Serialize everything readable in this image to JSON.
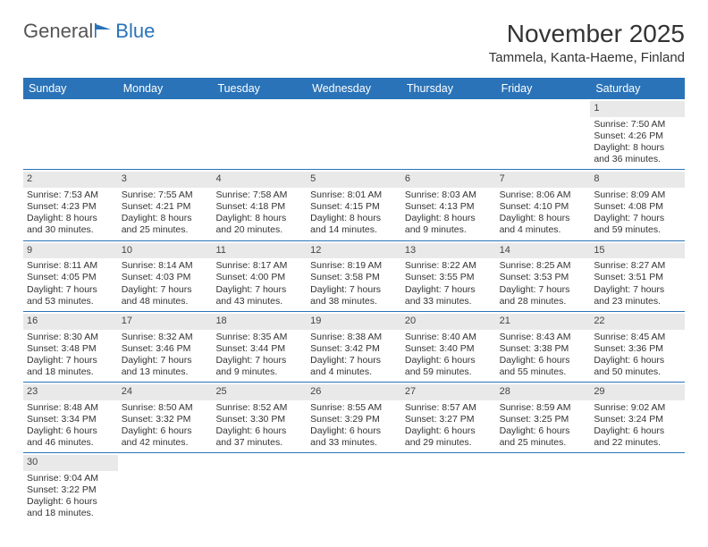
{
  "brand": {
    "part1": "General",
    "part2": "Blue"
  },
  "title": "November 2025",
  "subtitle": "Tammela, Kanta-Haeme, Finland",
  "colors": {
    "header_bg": "#2a73b8",
    "header_text": "#ffffff",
    "daynum_bg": "#e9e9e9",
    "border": "#2a73b8",
    "text": "#333333"
  },
  "fonts": {
    "title_size": 28,
    "subtitle_size": 15,
    "header_size": 12.5,
    "body_size": 10.5,
    "daynum_size": 11
  },
  "day_names": [
    "Sunday",
    "Monday",
    "Tuesday",
    "Wednesday",
    "Thursday",
    "Friday",
    "Saturday"
  ],
  "weeks": [
    [
      {
        "empty": true
      },
      {
        "empty": true
      },
      {
        "empty": true
      },
      {
        "empty": true
      },
      {
        "empty": true
      },
      {
        "empty": true
      },
      {
        "num": "1",
        "sunrise": "Sunrise: 7:50 AM",
        "sunset": "Sunset: 4:26 PM",
        "day1": "Daylight: 8 hours",
        "day2": "and 36 minutes."
      }
    ],
    [
      {
        "num": "2",
        "sunrise": "Sunrise: 7:53 AM",
        "sunset": "Sunset: 4:23 PM",
        "day1": "Daylight: 8 hours",
        "day2": "and 30 minutes."
      },
      {
        "num": "3",
        "sunrise": "Sunrise: 7:55 AM",
        "sunset": "Sunset: 4:21 PM",
        "day1": "Daylight: 8 hours",
        "day2": "and 25 minutes."
      },
      {
        "num": "4",
        "sunrise": "Sunrise: 7:58 AM",
        "sunset": "Sunset: 4:18 PM",
        "day1": "Daylight: 8 hours",
        "day2": "and 20 minutes."
      },
      {
        "num": "5",
        "sunrise": "Sunrise: 8:01 AM",
        "sunset": "Sunset: 4:15 PM",
        "day1": "Daylight: 8 hours",
        "day2": "and 14 minutes."
      },
      {
        "num": "6",
        "sunrise": "Sunrise: 8:03 AM",
        "sunset": "Sunset: 4:13 PM",
        "day1": "Daylight: 8 hours",
        "day2": "and 9 minutes."
      },
      {
        "num": "7",
        "sunrise": "Sunrise: 8:06 AM",
        "sunset": "Sunset: 4:10 PM",
        "day1": "Daylight: 8 hours",
        "day2": "and 4 minutes."
      },
      {
        "num": "8",
        "sunrise": "Sunrise: 8:09 AM",
        "sunset": "Sunset: 4:08 PM",
        "day1": "Daylight: 7 hours",
        "day2": "and 59 minutes."
      }
    ],
    [
      {
        "num": "9",
        "sunrise": "Sunrise: 8:11 AM",
        "sunset": "Sunset: 4:05 PM",
        "day1": "Daylight: 7 hours",
        "day2": "and 53 minutes."
      },
      {
        "num": "10",
        "sunrise": "Sunrise: 8:14 AM",
        "sunset": "Sunset: 4:03 PM",
        "day1": "Daylight: 7 hours",
        "day2": "and 48 minutes."
      },
      {
        "num": "11",
        "sunrise": "Sunrise: 8:17 AM",
        "sunset": "Sunset: 4:00 PM",
        "day1": "Daylight: 7 hours",
        "day2": "and 43 minutes."
      },
      {
        "num": "12",
        "sunrise": "Sunrise: 8:19 AM",
        "sunset": "Sunset: 3:58 PM",
        "day1": "Daylight: 7 hours",
        "day2": "and 38 minutes."
      },
      {
        "num": "13",
        "sunrise": "Sunrise: 8:22 AM",
        "sunset": "Sunset: 3:55 PM",
        "day1": "Daylight: 7 hours",
        "day2": "and 33 minutes."
      },
      {
        "num": "14",
        "sunrise": "Sunrise: 8:25 AM",
        "sunset": "Sunset: 3:53 PM",
        "day1": "Daylight: 7 hours",
        "day2": "and 28 minutes."
      },
      {
        "num": "15",
        "sunrise": "Sunrise: 8:27 AM",
        "sunset": "Sunset: 3:51 PM",
        "day1": "Daylight: 7 hours",
        "day2": "and 23 minutes."
      }
    ],
    [
      {
        "num": "16",
        "sunrise": "Sunrise: 8:30 AM",
        "sunset": "Sunset: 3:48 PM",
        "day1": "Daylight: 7 hours",
        "day2": "and 18 minutes."
      },
      {
        "num": "17",
        "sunrise": "Sunrise: 8:32 AM",
        "sunset": "Sunset: 3:46 PM",
        "day1": "Daylight: 7 hours",
        "day2": "and 13 minutes."
      },
      {
        "num": "18",
        "sunrise": "Sunrise: 8:35 AM",
        "sunset": "Sunset: 3:44 PM",
        "day1": "Daylight: 7 hours",
        "day2": "and 9 minutes."
      },
      {
        "num": "19",
        "sunrise": "Sunrise: 8:38 AM",
        "sunset": "Sunset: 3:42 PM",
        "day1": "Daylight: 7 hours",
        "day2": "and 4 minutes."
      },
      {
        "num": "20",
        "sunrise": "Sunrise: 8:40 AM",
        "sunset": "Sunset: 3:40 PM",
        "day1": "Daylight: 6 hours",
        "day2": "and 59 minutes."
      },
      {
        "num": "21",
        "sunrise": "Sunrise: 8:43 AM",
        "sunset": "Sunset: 3:38 PM",
        "day1": "Daylight: 6 hours",
        "day2": "and 55 minutes."
      },
      {
        "num": "22",
        "sunrise": "Sunrise: 8:45 AM",
        "sunset": "Sunset: 3:36 PM",
        "day1": "Daylight: 6 hours",
        "day2": "and 50 minutes."
      }
    ],
    [
      {
        "num": "23",
        "sunrise": "Sunrise: 8:48 AM",
        "sunset": "Sunset: 3:34 PM",
        "day1": "Daylight: 6 hours",
        "day2": "and 46 minutes."
      },
      {
        "num": "24",
        "sunrise": "Sunrise: 8:50 AM",
        "sunset": "Sunset: 3:32 PM",
        "day1": "Daylight: 6 hours",
        "day2": "and 42 minutes."
      },
      {
        "num": "25",
        "sunrise": "Sunrise: 8:52 AM",
        "sunset": "Sunset: 3:30 PM",
        "day1": "Daylight: 6 hours",
        "day2": "and 37 minutes."
      },
      {
        "num": "26",
        "sunrise": "Sunrise: 8:55 AM",
        "sunset": "Sunset: 3:29 PM",
        "day1": "Daylight: 6 hours",
        "day2": "and 33 minutes."
      },
      {
        "num": "27",
        "sunrise": "Sunrise: 8:57 AM",
        "sunset": "Sunset: 3:27 PM",
        "day1": "Daylight: 6 hours",
        "day2": "and 29 minutes."
      },
      {
        "num": "28",
        "sunrise": "Sunrise: 8:59 AM",
        "sunset": "Sunset: 3:25 PM",
        "day1": "Daylight: 6 hours",
        "day2": "and 25 minutes."
      },
      {
        "num": "29",
        "sunrise": "Sunrise: 9:02 AM",
        "sunset": "Sunset: 3:24 PM",
        "day1": "Daylight: 6 hours",
        "day2": "and 22 minutes."
      }
    ],
    [
      {
        "num": "30",
        "sunrise": "Sunrise: 9:04 AM",
        "sunset": "Sunset: 3:22 PM",
        "day1": "Daylight: 6 hours",
        "day2": "and 18 minutes."
      },
      {
        "empty": true
      },
      {
        "empty": true
      },
      {
        "empty": true
      },
      {
        "empty": true
      },
      {
        "empty": true
      },
      {
        "empty": true
      }
    ]
  ]
}
